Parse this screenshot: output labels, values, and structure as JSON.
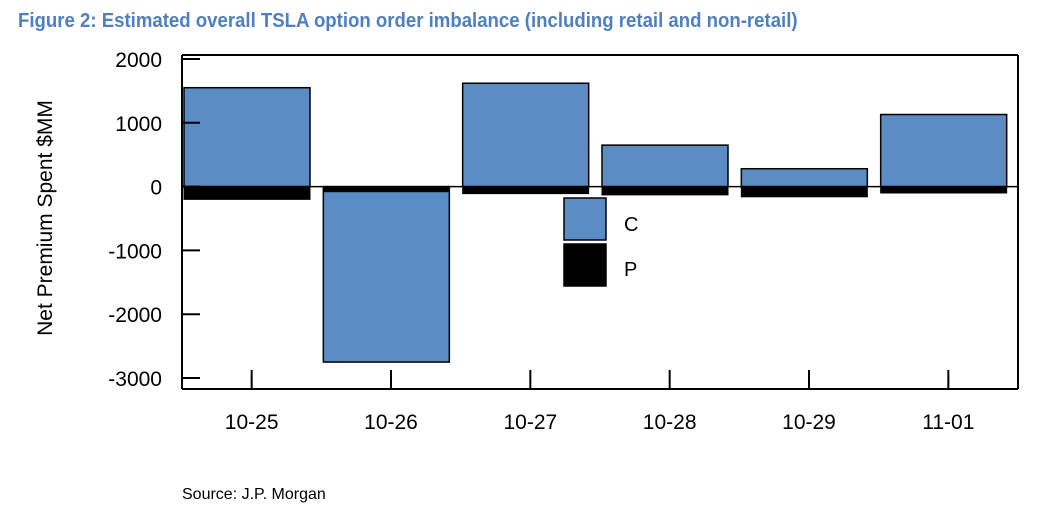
{
  "figure": {
    "title": "Figure 2: Estimated overall TSLA option order imbalance (including retail and non-retail)",
    "source": "Source: J.P. Morgan"
  },
  "colors": {
    "calls": "#5b8cc4",
    "puts": "#000000",
    "title": "#4f7fbf"
  },
  "chart_data": {
    "type": "bar",
    "categories": [
      "10-25",
      "10-26",
      "10-27",
      "10-28",
      "10-29",
      "11-01"
    ],
    "series": [
      {
        "name": "C",
        "values": [
          1550,
          -2750,
          1620,
          650,
          280,
          1130
        ]
      },
      {
        "name": "P",
        "values": [
          -200,
          -80,
          -110,
          -130,
          -160,
          -100
        ]
      }
    ],
    "title": "Figure 2: Estimated overall TSLA option order imbalance (including retail and non-retail)",
    "xlabel": "",
    "ylabel": "Net Premium Spent $MM",
    "ylim": [
      -3000,
      2000
    ],
    "yticks": [
      2000,
      1000,
      0,
      -1000,
      -2000,
      -3000
    ],
    "grid": false,
    "legend": "center"
  }
}
